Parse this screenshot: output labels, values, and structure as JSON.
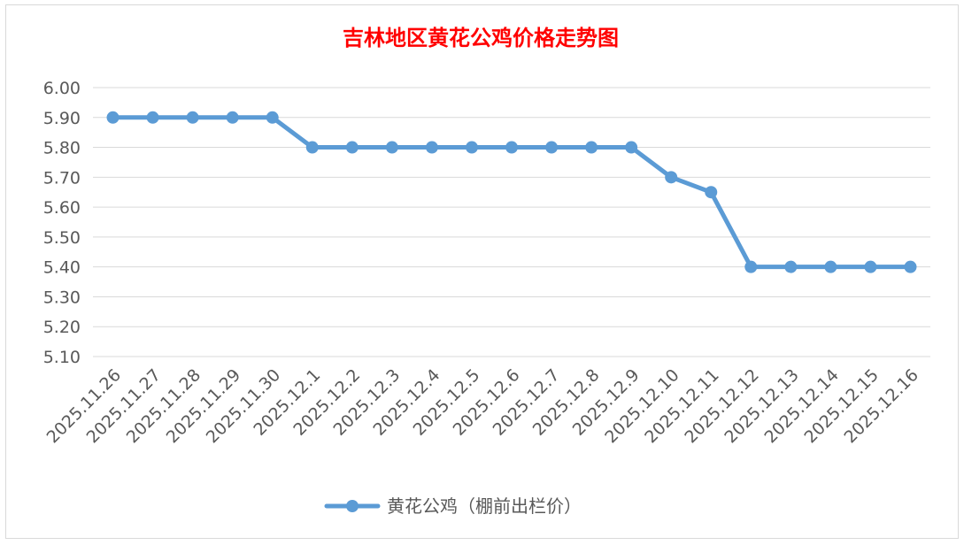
{
  "chart_data": {
    "type": "line",
    "title": "吉林地区黄花公鸡价格走势图",
    "title_color": "#ff0000",
    "xlabel": "",
    "ylabel": "",
    "ylim": [
      5.1,
      6.0
    ],
    "ytick_step": 0.1,
    "ytick_labels": [
      "6.00",
      "5.90",
      "5.80",
      "5.70",
      "5.60",
      "5.50",
      "5.40",
      "5.30",
      "5.20",
      "5.10"
    ],
    "grid": true,
    "legend_position": "bottom",
    "categories": [
      "2025.11.26",
      "2025.11.27",
      "2025.11.28",
      "2025.11.29",
      "2025.11.30",
      "2025.12.1",
      "2025.12.2",
      "2025.12.3",
      "2025.12.4",
      "2025.12.5",
      "2025.12.6",
      "2025.12.7",
      "2025.12.8",
      "2025.12.9",
      "2025.12.10",
      "2025.12.11",
      "2025.12.12",
      "2025.12.13",
      "2025.12.14",
      "2025.12.15",
      "2025.12.16"
    ],
    "series": [
      {
        "name": "黄花公鸡（棚前出栏价）",
        "color": "#5b9bd5",
        "values": [
          5.9,
          5.9,
          5.9,
          5.9,
          5.9,
          5.8,
          5.8,
          5.8,
          5.8,
          5.8,
          5.8,
          5.8,
          5.8,
          5.8,
          5.7,
          5.65,
          5.4,
          5.4,
          5.4,
          5.4,
          5.4
        ]
      }
    ]
  }
}
